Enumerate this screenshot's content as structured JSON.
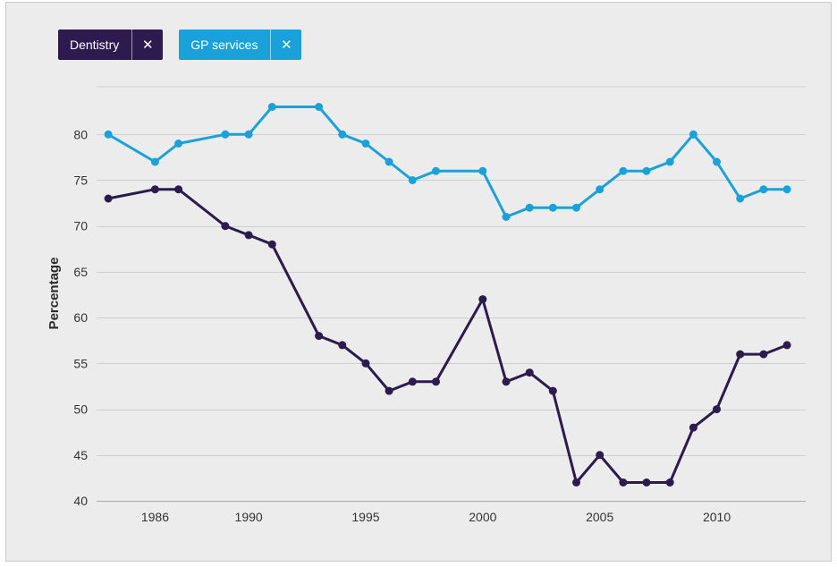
{
  "legend": {
    "dentistry": {
      "label": "Dentistry",
      "close": "✕"
    },
    "gp": {
      "label": "GP services",
      "close": "✕"
    }
  },
  "colors": {
    "dentistry": "#2d1a4e",
    "gp": "#1ba1d9",
    "grid": "#cfcfcf",
    "background": "#ececec"
  },
  "chart_data": {
    "type": "line",
    "title": "",
    "xlabel": "",
    "ylabel": "Percentage",
    "x": [
      1984,
      1986,
      1987,
      1989,
      1990,
      1991,
      1993,
      1994,
      1995,
      1996,
      1997,
      1998,
      2000,
      2001,
      2002,
      2003,
      2004,
      2005,
      2006,
      2007,
      2008,
      2009,
      2010,
      2011,
      2012,
      2013
    ],
    "xticks": [
      1986,
      1990,
      1995,
      2000,
      2005,
      2010
    ],
    "xlim": [
      1983.5,
      2013.8
    ],
    "ylim": [
      40,
      85
    ],
    "yticks": [
      40,
      45,
      50,
      55,
      60,
      65,
      70,
      75,
      80
    ],
    "grid": true,
    "legend_position": "top-left",
    "series": [
      {
        "name": "Dentistry",
        "key": "dentistry",
        "values": [
          73,
          74,
          74,
          70,
          69,
          68,
          58,
          57,
          55,
          52,
          53,
          53,
          62,
          53,
          54,
          52,
          42,
          45,
          42,
          42,
          42,
          48,
          50,
          56,
          56,
          57
        ]
      },
      {
        "name": "GP services",
        "key": "gp",
        "values": [
          80,
          77,
          79,
          80,
          80,
          83,
          83,
          80,
          79,
          77,
          75,
          76,
          76,
          71,
          72,
          72,
          72,
          74,
          76,
          76,
          77,
          80,
          77,
          73,
          74,
          74
        ]
      }
    ]
  }
}
